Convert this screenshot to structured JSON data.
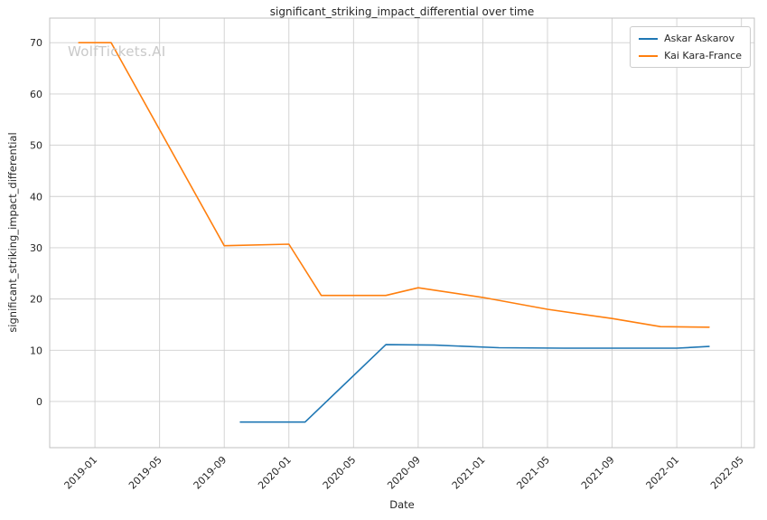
{
  "watermark": "WolfTickets.AI",
  "chart_data": {
    "type": "line",
    "title": "significant_striking_impact_differential over time",
    "xlabel": "Date",
    "ylabel": "significant_striking_impact_differential",
    "x_tick_labels": [
      "2019-01",
      "2019-05",
      "2019-09",
      "2020-01",
      "2020-05",
      "2020-09",
      "2021-01",
      "2021-05",
      "2021-09",
      "2022-01",
      "2022-05"
    ],
    "y_ticks": [
      0,
      10,
      20,
      30,
      40,
      50,
      60,
      70
    ],
    "xlim_months": [
      -1.8,
      41.8
    ],
    "ylim": [
      -9,
      74.8
    ],
    "grid": true,
    "grid_color": "#cfcfcf",
    "border_color": "#c0c0c0",
    "tick_color": "#262626",
    "legend_position": "upper right",
    "series": [
      {
        "name": "Askar Askarov",
        "color": "#1f77b4",
        "points": [
          [
            "2019-10",
            -4.0
          ],
          [
            "2020-02",
            -4.0
          ],
          [
            "2020-07",
            11.1
          ],
          [
            "2020-10",
            11.0
          ],
          [
            "2021-02",
            10.5
          ],
          [
            "2021-06",
            10.4
          ],
          [
            "2022-01",
            10.4
          ],
          [
            "2022-03",
            10.75
          ]
        ]
      },
      {
        "name": "Kai Kara-France",
        "color": "#ff7f0e",
        "points": [
          [
            "2018-12",
            70.0
          ],
          [
            "2019-02",
            70.0
          ],
          [
            "2019-09",
            30.4
          ],
          [
            "2020-01",
            30.7
          ],
          [
            "2020-03",
            20.7
          ],
          [
            "2020-07",
            20.7
          ],
          [
            "2020-09",
            22.2
          ],
          [
            "2021-01",
            20.3
          ],
          [
            "2021-05",
            18.0
          ],
          [
            "2021-09",
            16.2
          ],
          [
            "2021-12",
            14.6
          ],
          [
            "2022-03",
            14.5
          ]
        ]
      }
    ]
  }
}
